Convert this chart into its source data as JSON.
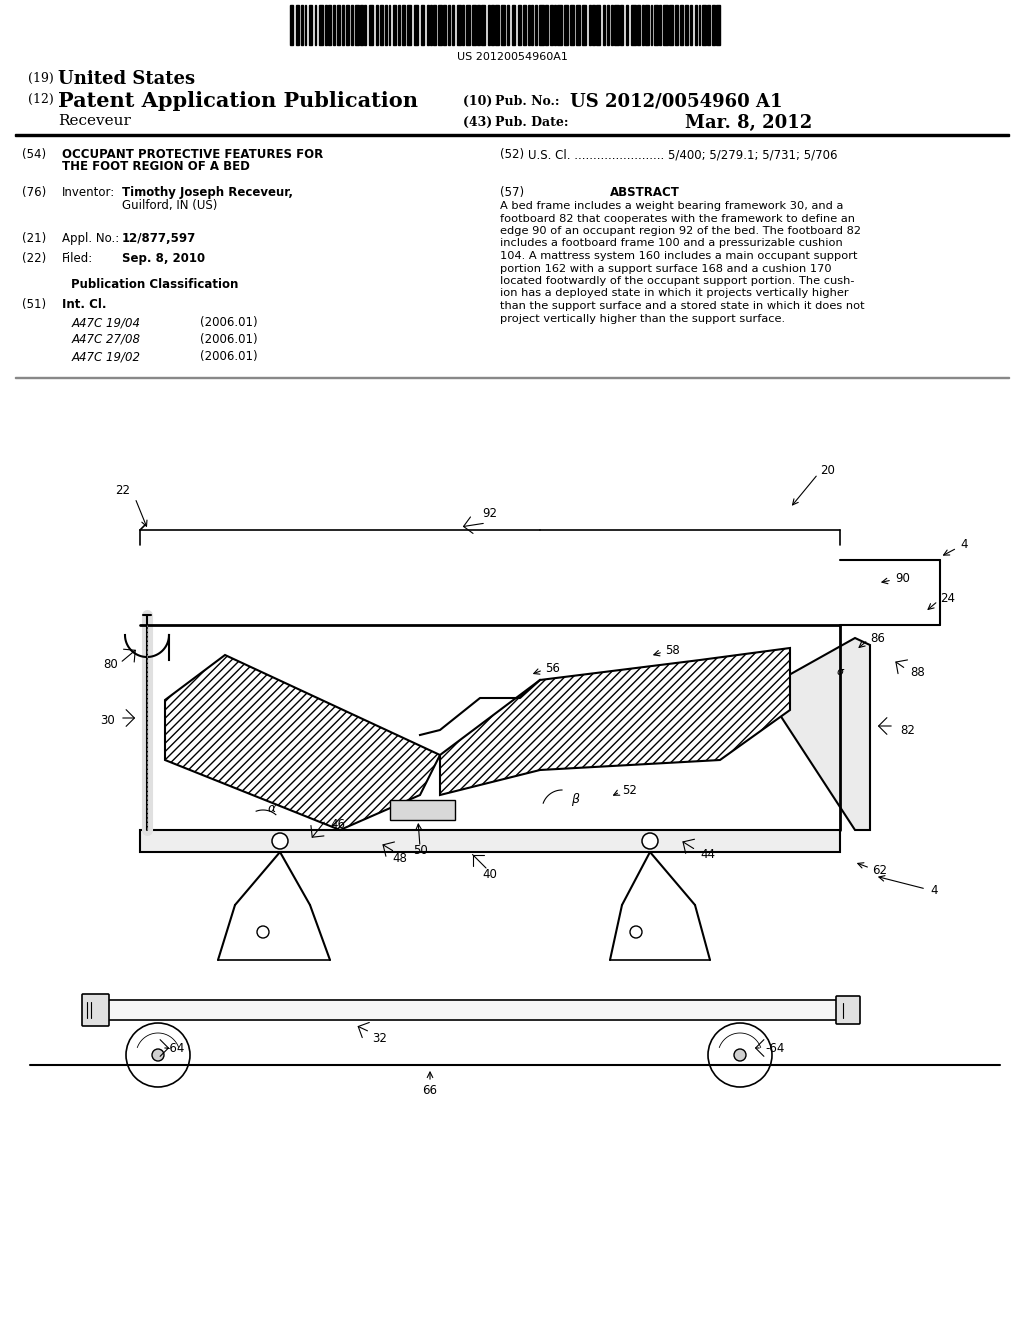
{
  "bg_color": "#ffffff",
  "barcode_text": "US 20120054960A1",
  "title_19": "(19) United States",
  "title_12_prefix": "(12) ",
  "title_12_main": "Patent Application Publication",
  "receveur": "Receveur",
  "pub_no_label": "(10) Pub. No.:",
  "pub_no_value": "US 2012/0054960 A1",
  "pub_date_label": "(43) Pub. Date:",
  "pub_date_value": "Mar. 8, 2012",
  "f54_label": "(54)",
  "f54_title1": "OCCUPANT PROTECTIVE FEATURES FOR",
  "f54_title2": "THE FOOT REGION OF A BED",
  "f52_label": "(52)",
  "f52_text": "U.S. Cl. ........................ 5/400; 5/279.1; 5/731; 5/706",
  "f76_label": "(76)",
  "f76_key": "Inventor:",
  "f76_val1": "Timothy Joseph Receveur,",
  "f76_val2": "Guilford, IN (US)",
  "f57_label": "(57)",
  "f57_title": "ABSTRACT",
  "abstract_lines": [
    "A bed frame includes a weight bearing framework 30, and a",
    "footboard 82 that cooperates with the framework to define an",
    "edge 90 of an occupant region 92 of the bed. The footboard 82",
    "includes a footboard frame 100 and a pressurizable cushion",
    "104. A mattress system 160 includes a main occupant support",
    "portion 162 with a support surface 168 and a cushion 170",
    "located footwardly of the occupant support portion. The cush-",
    "ion has a deployed state in which it projects vertically higher",
    "than the support surface and a stored state in which it does not",
    "project vertically higher than the support surface."
  ],
  "f21_label": "(21)",
  "f21_key": "Appl. No.:",
  "f21_val": "12/877,597",
  "f22_label": "(22)",
  "f22_key": "Filed:",
  "f22_val": "Sep. 8, 2010",
  "pub_class": "Publication Classification",
  "f51_label": "(51)",
  "f51_key": "Int. Cl.",
  "int_cl": [
    [
      "A47C 19/04",
      "(2006.01)"
    ],
    [
      "A47C 27/08",
      "(2006.01)"
    ],
    [
      "A47C 19/02",
      "(2006.01)"
    ]
  ]
}
